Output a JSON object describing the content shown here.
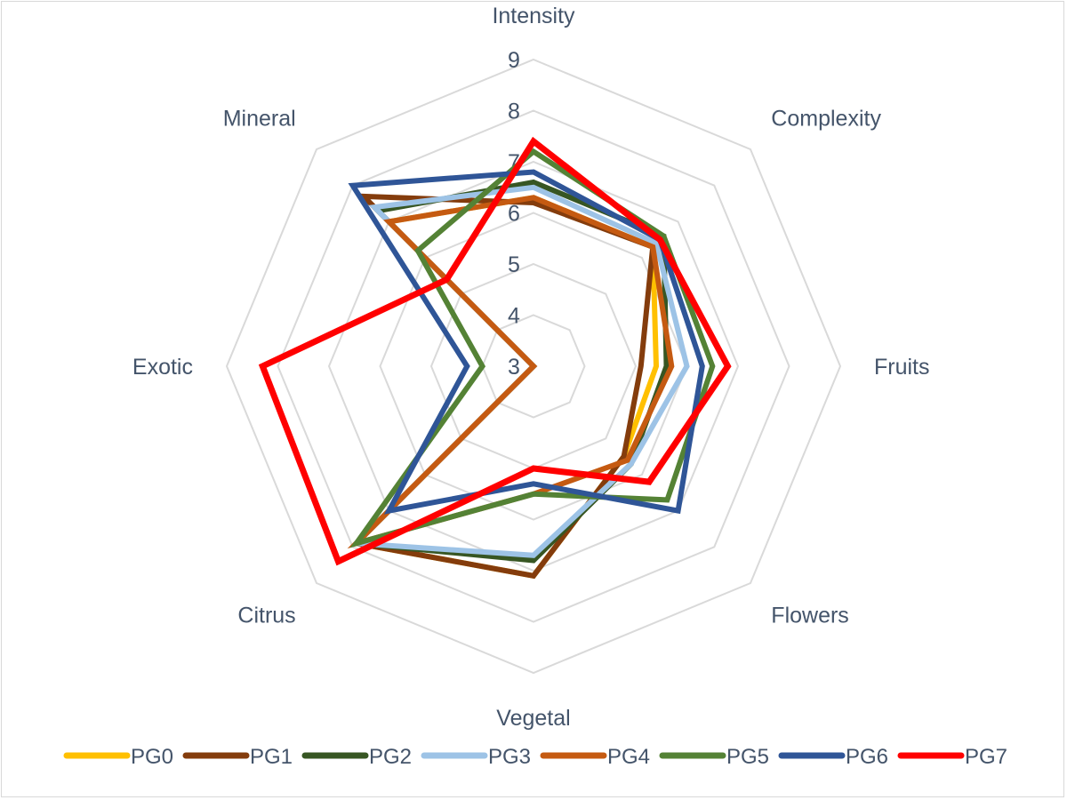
{
  "chart_data": {
    "type": "radar",
    "axes": [
      "Intensity",
      "Complexity",
      "Fruits",
      "Flowers",
      "Vegetal",
      "Citrus",
      "Exotic",
      "Mineral"
    ],
    "r_ticks": [
      "3",
      "4",
      "5",
      "6",
      "7",
      "8",
      "9"
    ],
    "r_range": [
      3,
      9
    ],
    "grid": true,
    "legend_position": "bottom",
    "series": [
      {
        "name": "PG0",
        "color": "#ffc000",
        "values": [
          6.3,
          6.3,
          5.4,
          5.5,
          7.1,
          7.9,
          3.0,
          7.0
        ]
      },
      {
        "name": "PG1",
        "color": "#843c0c",
        "values": [
          6.2,
          6.3,
          5.1,
          5.5,
          7.1,
          7.9,
          3.0,
          7.7
        ]
      },
      {
        "name": "PG2",
        "color": "#375623",
        "values": [
          6.6,
          6.6,
          5.6,
          5.7,
          6.8,
          7.9,
          3.0,
          7.3
        ]
      },
      {
        "name": "PG3",
        "color": "#9dc3e6",
        "values": [
          6.5,
          6.4,
          6.0,
          5.7,
          6.7,
          7.9,
          3.0,
          7.4
        ]
      },
      {
        "name": "PG4",
        "color": "#c55a11",
        "values": [
          6.3,
          6.3,
          5.7,
          5.6,
          5.5,
          7.9,
          3.0,
          7.0
        ]
      },
      {
        "name": "PG5",
        "color": "#548235",
        "values": [
          7.2,
          6.6,
          6.5,
          6.7,
          5.5,
          7.9,
          4.0,
          6.2
        ]
      },
      {
        "name": "PG6",
        "color": "#2f5597",
        "values": [
          6.8,
          6.5,
          6.3,
          7.0,
          5.3,
          7.0,
          4.3,
          8.0
        ]
      },
      {
        "name": "PG7",
        "color": "#ff0000",
        "values": [
          7.4,
          6.5,
          6.8,
          6.2,
          5.0,
          8.4,
          8.3,
          5.4
        ]
      }
    ]
  }
}
